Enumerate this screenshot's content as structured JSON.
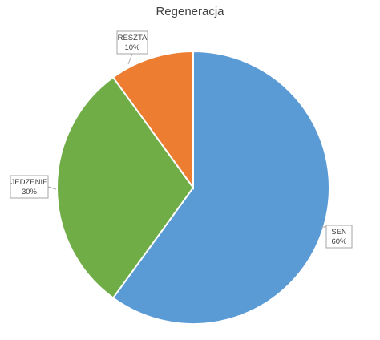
{
  "chart_data": {
    "type": "pie",
    "title": "Regeneracja",
    "slices": [
      {
        "label": "SEN",
        "value": 60,
        "value_label": "60%",
        "color": "#5b9bd5"
      },
      {
        "label": "JEDZENIE",
        "value": 30,
        "value_label": "30%",
        "color": "#70ad47"
      },
      {
        "label": "RESZTA",
        "value": 10,
        "value_label": "10%",
        "color": "#ed7d31"
      }
    ],
    "legend": "none",
    "start_angle": "top, clockwise"
  }
}
